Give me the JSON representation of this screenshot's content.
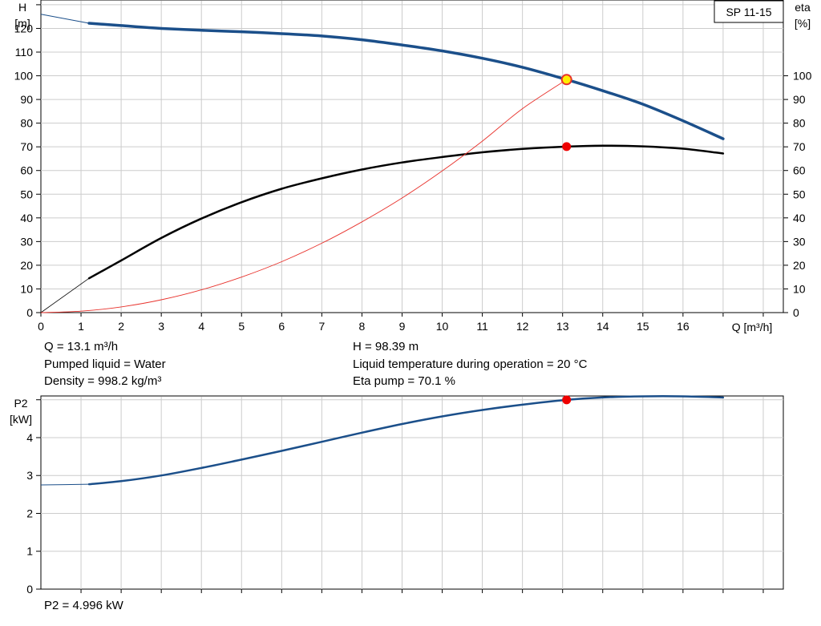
{
  "chart_data": [
    {
      "type": "line",
      "legend_box": "SP 11-15",
      "left_axis": {
        "label_line1": "H",
        "label_line2": "[m]",
        "ylim": [
          0,
          132
        ],
        "ticks": [
          0,
          10,
          20,
          30,
          40,
          50,
          60,
          70,
          80,
          90,
          100,
          110,
          120
        ]
      },
      "right_axis": {
        "label_line1": "eta",
        "label_line2": "[%]",
        "ylim": [
          0,
          132
        ],
        "ticks": [
          0,
          10,
          20,
          30,
          40,
          50,
          60,
          70,
          80,
          90,
          100
        ]
      },
      "x_axis": {
        "label": "Q [m³/h]",
        "xlim": [
          0,
          18.5
        ],
        "ticks": [
          0,
          1,
          2,
          3,
          4,
          5,
          6,
          7,
          8,
          9,
          10,
          11,
          12,
          13,
          14,
          15,
          16
        ]
      },
      "grid": true,
      "series": [
        {
          "key": "head",
          "color": "#1b4f8a",
          "x": [
            0,
            1.2,
            2,
            3,
            4,
            5,
            6,
            7,
            8,
            9,
            10,
            11,
            12,
            13.1,
            14,
            15,
            16,
            17
          ],
          "y": [
            126,
            122.2,
            121.2,
            120,
            119.2,
            118.6,
            117.8,
            116.8,
            115.2,
            113,
            110.5,
            107.4,
            103.6,
            98.4,
            93.7,
            88,
            81,
            73.4
          ]
        },
        {
          "key": "eta",
          "color": "#000000",
          "x": [
            1.2,
            2,
            3,
            4,
            5,
            6,
            7,
            8,
            9,
            10,
            11,
            12,
            13.1,
            14,
            15,
            16,
            17
          ],
          "y": [
            14.5,
            22,
            31.5,
            39.7,
            46.6,
            52.3,
            56.7,
            60.4,
            63.4,
            65.7,
            67.7,
            69.1,
            70.1,
            70.5,
            70.2,
            69.2,
            67.2
          ]
        },
        {
          "key": "system",
          "color": "#e8322c",
          "x": [
            0,
            1,
            2,
            3,
            4,
            5,
            6,
            7,
            8,
            9,
            10,
            11,
            12,
            13.1
          ],
          "y": [
            0,
            0.6,
            2.4,
            5.4,
            9.6,
            15,
            21.5,
            29.3,
            38.3,
            48.4,
            59.8,
            72.4,
            86.1,
            98.4
          ]
        }
      ],
      "duty_point": {
        "x": 13.1,
        "head": 98.39,
        "eta": 70.1
      }
    },
    {
      "type": "line",
      "left_axis": {
        "label_line1": "P2",
        "label_line2": "[kW]",
        "ylim": [
          0,
          5.1
        ],
        "ticks": [
          0,
          1,
          2,
          3,
          4
        ]
      },
      "x_axis": {
        "xlim": [
          0,
          18.5
        ]
      },
      "grid": true,
      "series": [
        {
          "key": "p2",
          "color": "#1b4f8a",
          "x": [
            0,
            1.2,
            2,
            3,
            4,
            5,
            6,
            7,
            8,
            9,
            10,
            11,
            12,
            13.1,
            14,
            15,
            16,
            17
          ],
          "y": [
            2.75,
            2.77,
            2.85,
            3.0,
            3.2,
            3.42,
            3.65,
            3.89,
            4.13,
            4.36,
            4.56,
            4.73,
            4.87,
            4.996,
            5.06,
            5.09,
            5.09,
            5.06
          ]
        }
      ],
      "duty_point": {
        "x": 13.1,
        "p2": 4.996
      }
    }
  ],
  "info": {
    "flow": "Q = 13.1 m³/h",
    "head": "H = 98.39 m",
    "liquid": "Pumped liquid = Water",
    "temperature": "Liquid temperature during operation = 20 °C",
    "density": "Density = 998.2 kg/m³",
    "eta_pump": "Eta pump = 70.1 %",
    "power": "P2 = 4.996 kW"
  },
  "colors": {
    "head": "#1b4f8a",
    "eta": "#000000",
    "system": "#e8322c",
    "marker_head": "#ffee00",
    "marker_red": "#ee0000",
    "grid": "#cccccc"
  }
}
